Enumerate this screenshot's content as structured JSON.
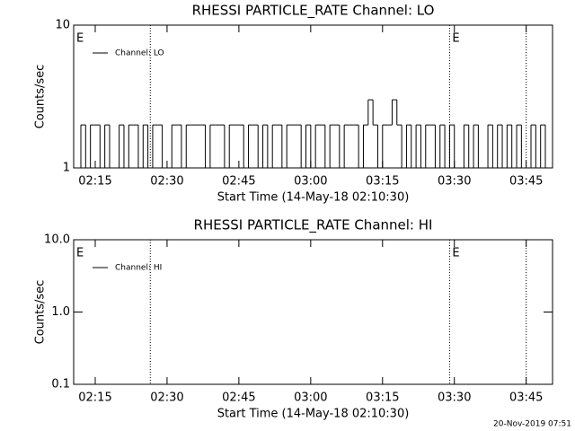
{
  "footer": "20-Nov-2019 07:51",
  "chart_data": [
    {
      "type": "line",
      "title": "RHESSI PARTICLE_RATE Channel: LO",
      "xlabel": "Start Time (14-May-18 02:10:30)",
      "ylabel": "Counts/sec",
      "log_y": true,
      "step": true,
      "xlim": [
        "02:10:30",
        "03:50:30"
      ],
      "xticks": [
        "02:15",
        "02:30",
        "02:45",
        "03:00",
        "03:15",
        "03:30",
        "03:45"
      ],
      "ylim": [
        1,
        10
      ],
      "yticks": [
        1,
        10
      ],
      "vlines": [
        "02:26:30",
        "03:29:00",
        "03:45:00"
      ],
      "annotations": [
        {
          "text": "E",
          "x": "02:10:30"
        },
        {
          "text": "E",
          "x": "03:29:00"
        }
      ],
      "x": [
        "02:11",
        "02:12",
        "02:13",
        "02:14",
        "02:15",
        "02:16",
        "02:17",
        "02:18",
        "02:19",
        "02:20",
        "02:21",
        "02:22",
        "02:23",
        "02:24",
        "02:25",
        "02:26",
        "02:27",
        "02:28",
        "02:29",
        "02:30",
        "02:31",
        "02:32",
        "02:33",
        "02:34",
        "02:35",
        "02:36",
        "02:37",
        "02:38",
        "02:39",
        "02:40",
        "02:41",
        "02:42",
        "02:43",
        "02:44",
        "02:45",
        "02:46",
        "02:47",
        "02:48",
        "02:49",
        "02:50",
        "02:51",
        "02:52",
        "02:53",
        "02:54",
        "02:55",
        "02:56",
        "02:57",
        "02:58",
        "02:59",
        "03:00",
        "03:01",
        "03:02",
        "03:03",
        "03:04",
        "03:05",
        "03:06",
        "03:07",
        "03:08",
        "03:09",
        "03:10",
        "03:11",
        "03:12",
        "03:13",
        "03:14",
        "03:15",
        "03:16",
        "03:17",
        "03:18",
        "03:19",
        "03:20",
        "03:21",
        "03:22",
        "03:23",
        "03:24",
        "03:25",
        "03:26",
        "03:27",
        "03:28",
        "03:29",
        "03:30",
        "03:31",
        "03:32",
        "03:33",
        "03:34",
        "03:35",
        "03:36",
        "03:37",
        "03:38",
        "03:39",
        "03:40",
        "03:41",
        "03:42",
        "03:43",
        "03:44",
        "03:45",
        "03:46",
        "03:47",
        "03:48",
        "03:49",
        "03:50"
      ],
      "series": [
        {
          "name": "Channel: LO",
          "color": "#000000",
          "values": [
            1,
            2,
            1,
            2,
            2,
            1,
            2,
            1,
            1,
            2,
            1,
            2,
            2,
            1,
            2,
            1,
            2,
            2,
            1,
            1,
            2,
            2,
            1,
            2,
            2,
            2,
            2,
            1,
            2,
            2,
            2,
            1,
            2,
            2,
            2,
            1,
            2,
            2,
            1,
            2,
            1,
            2,
            2,
            1,
            2,
            2,
            2,
            1,
            2,
            1,
            2,
            2,
            1,
            2,
            2,
            1,
            2,
            2,
            2,
            1,
            2,
            3,
            2,
            1,
            2,
            2,
            3,
            2,
            1,
            2,
            1,
            2,
            1,
            2,
            2,
            1,
            2,
            1,
            2,
            1,
            1,
            2,
            1,
            2,
            1,
            1,
            2,
            1,
            2,
            1,
            2,
            1,
            2,
            1,
            1,
            2,
            1,
            2,
            1,
            1
          ]
        }
      ]
    },
    {
      "type": "line",
      "title": "RHESSI PARTICLE_RATE Channel: HI",
      "xlabel": "Start Time (14-May-18 02:10:30)",
      "ylabel": "Counts/sec",
      "log_y": true,
      "step": true,
      "xlim": [
        "02:10:30",
        "03:50:30"
      ],
      "xticks": [
        "02:15",
        "02:30",
        "02:45",
        "03:00",
        "03:15",
        "03:30",
        "03:45"
      ],
      "ylim": [
        0.1,
        10
      ],
      "yticks": [
        0.1,
        {
          "value": 1,
          "label": "1.0"
        },
        {
          "value": 10,
          "label": "10.0"
        }
      ],
      "vlines": [
        "02:26:30",
        "03:29:00",
        "03:45:00"
      ],
      "annotations": [
        {
          "text": "E",
          "x": "02:10:30"
        },
        {
          "text": "E",
          "x": "03:29:00"
        }
      ],
      "x": [],
      "series": [
        {
          "name": "Channel: HI",
          "color": "#000000",
          "values": []
        }
      ]
    }
  ]
}
